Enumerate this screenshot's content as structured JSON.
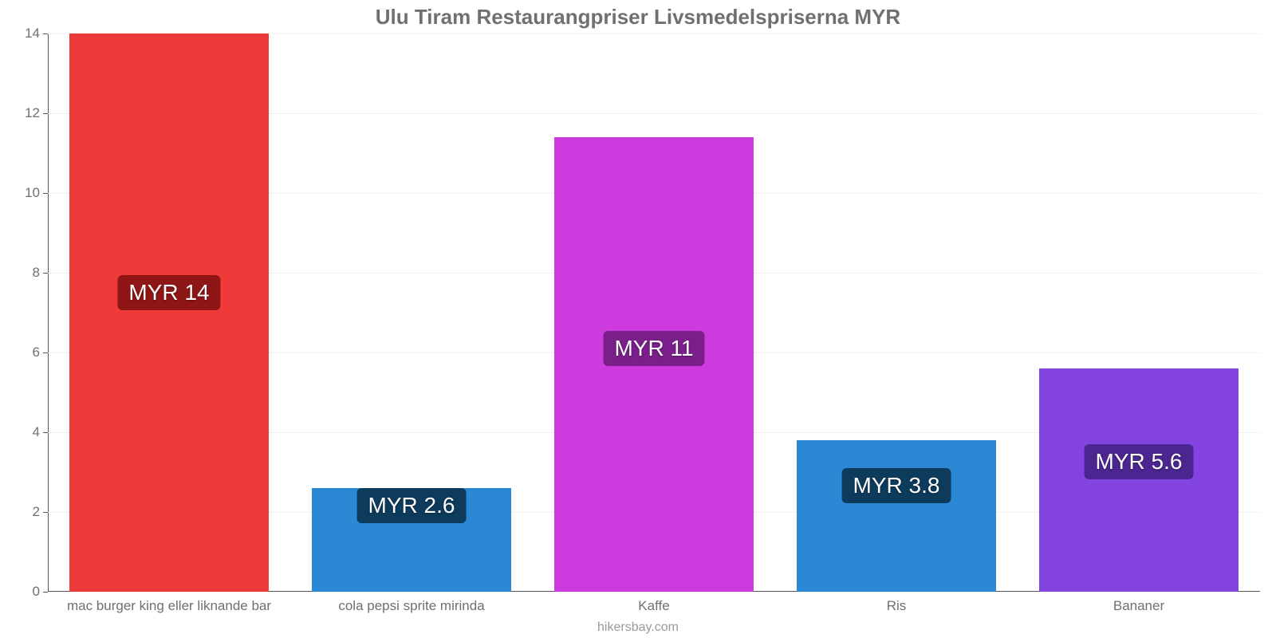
{
  "chart": {
    "type": "bar",
    "title": "Ulu Tiram Restaurangpriser Livsmedelspriserna MYR",
    "title_fontsize": 26,
    "title_color": "#707070",
    "attribution": "hikersbay.com",
    "background_color": "#ffffff",
    "grid_color": "#f3f3f3",
    "axis_color": "#555555",
    "tick_label_color": "#707070",
    "tick_label_fontsize": 17,
    "y_axis": {
      "min": 0,
      "max": 14,
      "tick_step": 2,
      "ticks": [
        0,
        2,
        4,
        6,
        8,
        10,
        12,
        14
      ]
    },
    "categories": [
      "mac burger king eller liknande bar",
      "cola pepsi sprite mirinda",
      "Kaffe",
      "Ris",
      "Bananer"
    ],
    "values": [
      14,
      2.6,
      11.4,
      3.8,
      5.6
    ],
    "value_labels": [
      "MYR 14",
      "MYR 2.6",
      "MYR 11",
      "MYR 3.8",
      "MYR 5.6"
    ],
    "bar_colors": [
      "#ee3b3a",
      "#2a88d5",
      "#cd3bdf",
      "#2a88d5",
      "#8243e0"
    ],
    "label_box_colors": [
      "#8f1616",
      "#0d3b5c",
      "#7a1f8a",
      "#0d3b5c",
      "#4c2690"
    ],
    "bar_label_fontsize": 28,
    "bar_width_ratio": 0.82,
    "label_y_values": [
      7.55,
      2.2,
      6.15,
      2.7,
      3.3
    ]
  }
}
